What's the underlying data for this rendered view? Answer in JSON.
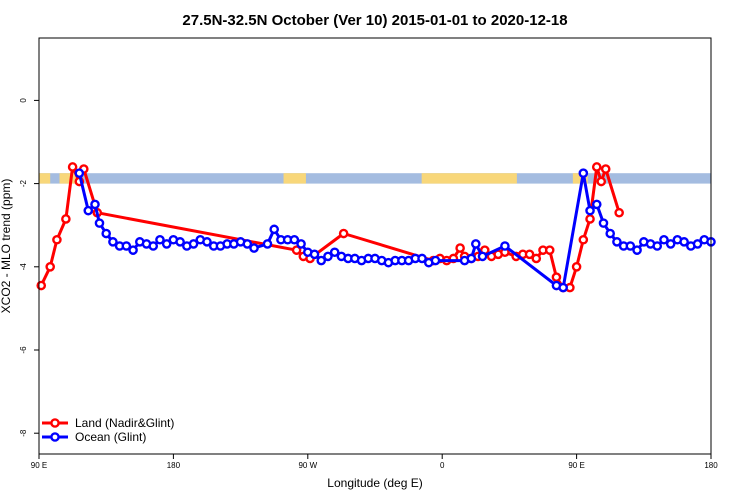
{
  "chart_data": {
    "type": "line",
    "title": "27.5N-32.5N October (Ver 10)   2015-01-01 to 2020-12-18",
    "xlabel": "Longitude (deg E)",
    "ylabel": "XCO2 - MLO trend (ppm)",
    "xlim": [
      90,
      450
    ],
    "ylim": [
      -8.5,
      1.5
    ],
    "x_ticks": [
      {
        "value": 90,
        "label": "90 E"
      },
      {
        "value": 162,
        "label": "180"
      },
      {
        "value": 234,
        "label": "90 W"
      },
      {
        "value": 306,
        "label": "0"
      },
      {
        "value": 378,
        "label": "90 E"
      },
      {
        "value": 450,
        "label": "180"
      }
    ],
    "y_ticks": [
      0,
      -2,
      -4,
      -6,
      -8
    ],
    "legend_position": "bottom-left",
    "grid": false,
    "surface_strip": {
      "y_top": -1.75,
      "y_bottom": -2.0,
      "ocean_color": "#a4bce0",
      "land_color": "#f8d77a",
      "land_ranges": [
        [
          90,
          96
        ],
        [
          101,
          110
        ],
        [
          221,
          233
        ],
        [
          295,
          346
        ],
        [
          376,
          384
        ]
      ]
    },
    "series": [
      {
        "name": "Land (Nadir&Glint)",
        "color": "#ff0000",
        "points": [
          [
            91.2,
            -4.45
          ],
          [
            96.0,
            -4.0
          ],
          [
            99.6,
            -3.35
          ],
          [
            104.4,
            -2.85
          ],
          [
            108.0,
            -1.6
          ],
          [
            111.6,
            -1.95
          ],
          [
            114.0,
            -1.65
          ],
          [
            121.2,
            -2.7
          ],
          [
            228.0,
            -3.6
          ],
          [
            231.6,
            -3.75
          ],
          [
            235.2,
            -3.8
          ],
          [
            253.2,
            -3.2
          ],
          [
            301.2,
            -3.85
          ],
          [
            304.8,
            -3.8
          ],
          [
            308.4,
            -3.85
          ],
          [
            312.0,
            -3.8
          ],
          [
            315.6,
            -3.55
          ],
          [
            318.0,
            -3.75
          ],
          [
            321.6,
            -3.8
          ],
          [
            325.2,
            -3.75
          ],
          [
            328.8,
            -3.6
          ],
          [
            332.4,
            -3.75
          ],
          [
            336.0,
            -3.7
          ],
          [
            339.6,
            -3.65
          ],
          [
            345.6,
            -3.75
          ],
          [
            349.2,
            -3.7
          ],
          [
            352.8,
            -3.7
          ],
          [
            356.4,
            -3.8
          ],
          [
            360.0,
            -3.6
          ],
          [
            363.6,
            -3.6
          ],
          [
            367.2,
            -4.25
          ],
          [
            370.8,
            -4.5
          ],
          [
            374.4,
            -4.5
          ],
          [
            378.0,
            -4.0
          ],
          [
            381.6,
            -3.35
          ],
          [
            385.2,
            -2.85
          ],
          [
            388.8,
            -1.6
          ],
          [
            391.2,
            -1.95
          ],
          [
            393.6,
            -1.65
          ],
          [
            400.8,
            -2.7
          ]
        ]
      },
      {
        "name": "Ocean (Glint)",
        "color": "#0000ff",
        "points": [
          [
            111.6,
            -1.75
          ],
          [
            116.4,
            -2.65
          ],
          [
            120.0,
            -2.5
          ],
          [
            122.4,
            -2.95
          ],
          [
            126.0,
            -3.2
          ],
          [
            129.6,
            -3.4
          ],
          [
            133.2,
            -3.5
          ],
          [
            136.8,
            -3.5
          ],
          [
            140.4,
            -3.6
          ],
          [
            144.0,
            -3.4
          ],
          [
            147.6,
            -3.45
          ],
          [
            151.2,
            -3.5
          ],
          [
            154.8,
            -3.35
          ],
          [
            158.4,
            -3.45
          ],
          [
            162.0,
            -3.35
          ],
          [
            165.6,
            -3.4
          ],
          [
            169.2,
            -3.5
          ],
          [
            172.8,
            -3.45
          ],
          [
            176.4,
            -3.35
          ],
          [
            180.0,
            -3.4
          ],
          [
            183.6,
            -3.5
          ],
          [
            187.2,
            -3.5
          ],
          [
            190.8,
            -3.45
          ],
          [
            194.4,
            -3.45
          ],
          [
            198.0,
            -3.4
          ],
          [
            201.6,
            -3.45
          ],
          [
            205.2,
            -3.55
          ],
          [
            212.4,
            -3.45
          ],
          [
            216.0,
            -3.1
          ],
          [
            219.6,
            -3.35
          ],
          [
            223.2,
            -3.35
          ],
          [
            226.8,
            -3.35
          ],
          [
            230.4,
            -3.45
          ],
          [
            234.0,
            -3.65
          ],
          [
            237.6,
            -3.7
          ],
          [
            241.2,
            -3.85
          ],
          [
            244.8,
            -3.75
          ],
          [
            248.4,
            -3.65
          ],
          [
            252.0,
            -3.75
          ],
          [
            255.6,
            -3.8
          ],
          [
            259.2,
            -3.8
          ],
          [
            262.8,
            -3.85
          ],
          [
            266.4,
            -3.8
          ],
          [
            270.0,
            -3.8
          ],
          [
            273.6,
            -3.85
          ],
          [
            277.2,
            -3.9
          ],
          [
            280.8,
            -3.85
          ],
          [
            284.4,
            -3.85
          ],
          [
            288.0,
            -3.85
          ],
          [
            291.6,
            -3.8
          ],
          [
            295.2,
            -3.8
          ],
          [
            298.8,
            -3.9
          ],
          [
            302.4,
            -3.85
          ],
          [
            318.0,
            -3.85
          ],
          [
            321.6,
            -3.8
          ],
          [
            324.0,
            -3.45
          ],
          [
            327.6,
            -3.75
          ],
          [
            339.6,
            -3.5
          ],
          [
            367.2,
            -4.45
          ],
          [
            370.8,
            -4.5
          ],
          [
            381.6,
            -1.75
          ],
          [
            385.2,
            -2.65
          ],
          [
            388.8,
            -2.5
          ],
          [
            392.4,
            -2.95
          ],
          [
            396.0,
            -3.2
          ],
          [
            399.6,
            -3.4
          ],
          [
            403.2,
            -3.5
          ],
          [
            406.8,
            -3.5
          ],
          [
            410.4,
            -3.6
          ],
          [
            414.0,
            -3.4
          ],
          [
            417.6,
            -3.45
          ],
          [
            421.2,
            -3.5
          ],
          [
            424.8,
            -3.35
          ],
          [
            428.4,
            -3.45
          ],
          [
            432.0,
            -3.35
          ],
          [
            435.6,
            -3.4
          ],
          [
            439.2,
            -3.5
          ],
          [
            442.8,
            -3.45
          ],
          [
            446.4,
            -3.35
          ],
          [
            450.0,
            -3.4
          ]
        ]
      }
    ]
  }
}
